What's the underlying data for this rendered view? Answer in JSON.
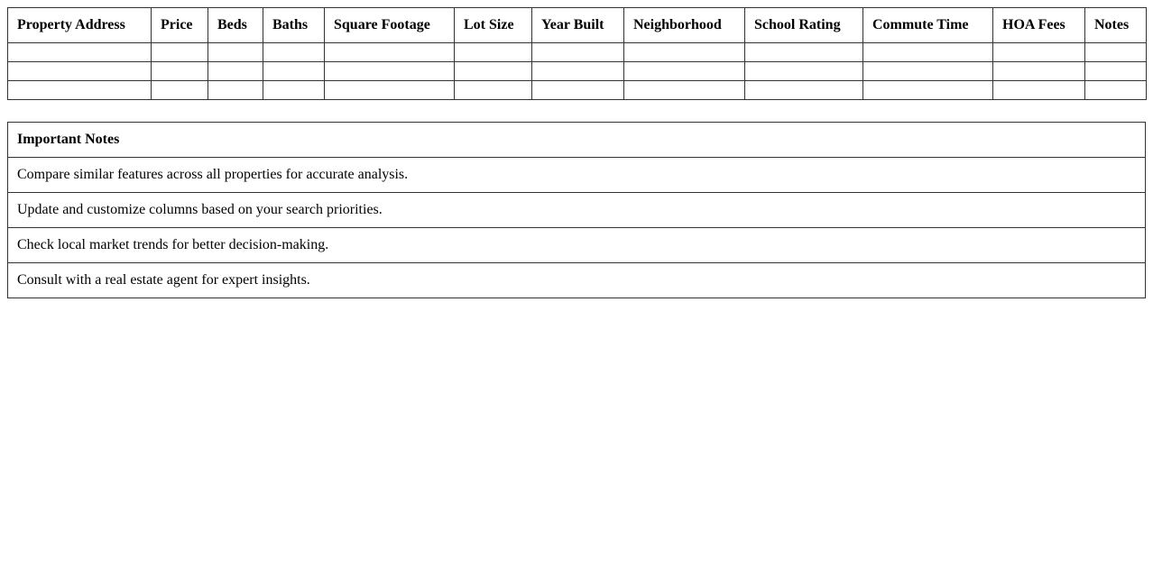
{
  "comparison_table": {
    "headers": [
      "Property Address",
      "Price",
      "Beds",
      "Baths",
      "Square Footage",
      "Lot Size",
      "Year Built",
      "Neighborhood",
      "School Rating",
      "Commute Time",
      "HOA Fees",
      "Notes"
    ],
    "rows": [
      [
        "",
        "",
        "",
        "",
        "",
        "",
        "",
        "",
        "",
        "",
        "",
        ""
      ],
      [
        "",
        "",
        "",
        "",
        "",
        "",
        "",
        "",
        "",
        "",
        "",
        ""
      ],
      [
        "",
        "",
        "",
        "",
        "",
        "",
        "",
        "",
        "",
        "",
        "",
        ""
      ]
    ]
  },
  "notes_table": {
    "title": "Important Notes",
    "items": [
      "Compare similar features across all properties for accurate analysis.",
      "Update and customize columns based on your search priorities.",
      "Check local market trends for better decision-making.",
      "Consult with a real estate agent for expert insights."
    ]
  }
}
